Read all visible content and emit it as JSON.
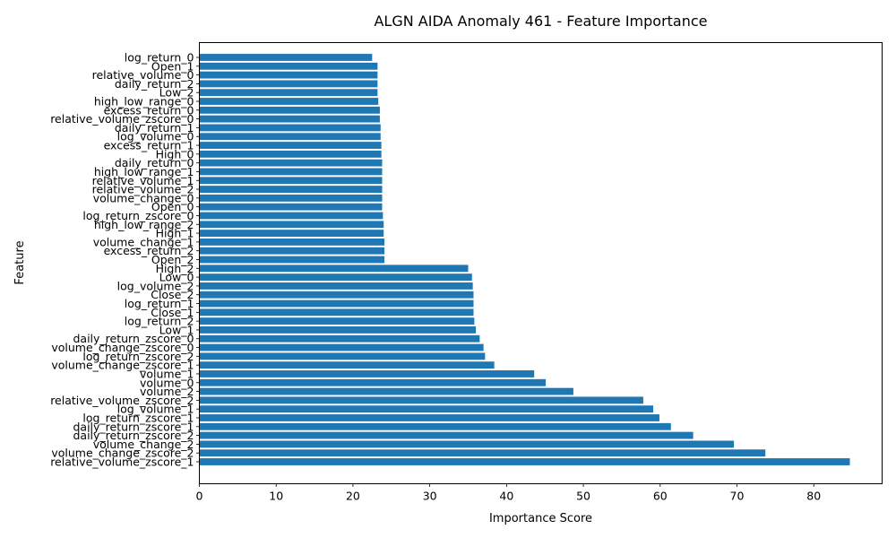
{
  "chart_data": {
    "type": "bar",
    "orientation": "horizontal",
    "title": "ALGN AIDA Anomaly 461 - Feature Importance",
    "xlabel": "Importance Score",
    "ylabel": "Feature",
    "xlim": [
      0,
      88.9
    ],
    "xticks": [
      0,
      10,
      20,
      30,
      40,
      50,
      60,
      70,
      80
    ],
    "grid": false,
    "bar_color": "#1f77b4",
    "categories": [
      "log_return_0",
      "Open_1",
      "relative_volume_0",
      "daily_return_2",
      "Low_2",
      "high_low_range_0",
      "excess_return_0",
      "relative_volume_zscore_0",
      "daily_return_1",
      "log_volume_0",
      "excess_return_1",
      "High_0",
      "daily_return_0",
      "high_low_range_1",
      "relative_volume_1",
      "relative_volume_2",
      "volume_change_0",
      "Open_0",
      "log_return_zscore_0",
      "high_low_range_2",
      "High_1",
      "volume_change_1",
      "excess_return_2",
      "Open_2",
      "High_2",
      "Low_0",
      "log_volume_2",
      "Close_2",
      "log_return_1",
      "Close_1",
      "log_return_2",
      "Low_1",
      "daily_return_zscore_0",
      "volume_change_zscore_0",
      "log_return_zscore_2",
      "volume_change_zscore_1",
      "volume_1",
      "volume_0",
      "volume_2",
      "relative_volume_zscore_2",
      "log_volume_1",
      "log_return_zscore_1",
      "daily_return_zscore_1",
      "daily_return_zscore_2",
      "volume_change_2",
      "volume_change_zscore_2",
      "relative_volume_zscore_1"
    ],
    "values": [
      22.5,
      23.2,
      23.2,
      23.2,
      23.2,
      23.3,
      23.5,
      23.5,
      23.6,
      23.6,
      23.7,
      23.7,
      23.8,
      23.8,
      23.8,
      23.8,
      23.8,
      23.8,
      23.9,
      24.0,
      24.0,
      24.1,
      24.1,
      24.1,
      35.0,
      35.5,
      35.6,
      35.7,
      35.7,
      35.7,
      35.8,
      36.0,
      36.5,
      37.0,
      37.2,
      38.4,
      43.6,
      45.1,
      48.7,
      57.8,
      59.1,
      59.9,
      61.4,
      64.3,
      69.6,
      73.7,
      84.7
    ]
  }
}
